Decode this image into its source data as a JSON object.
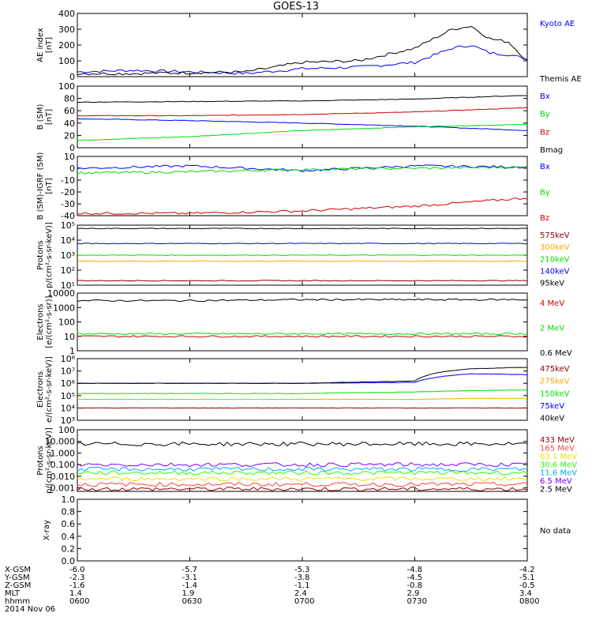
{
  "title": "GOES-13",
  "date": "2014 Nov 06",
  "colors": {
    "black": "#000000",
    "blue": "#0000ff",
    "green": "#00dd00",
    "red": "#cc0000",
    "orange": "#ffa500",
    "darkred": "#8b0000",
    "yellow": "#e6e600",
    "lime": "#22ff00",
    "cyan": "#00aaff",
    "purple": "#7a00ff",
    "pink": "#ff4040"
  },
  "footer": {
    "rows": [
      {
        "label": "X-GSM",
        "values": [
          "-6.0",
          "-5.7",
          "-5.3",
          "-4.8",
          "-4.2"
        ]
      },
      {
        "label": "Y-GSM",
        "values": [
          "-2.3",
          "-3.1",
          "-3.8",
          "-4.5",
          "-5.1"
        ]
      },
      {
        "label": "Z-GSM",
        "values": [
          "-1.6",
          "-1.4",
          "-1.1",
          "-0.8",
          "-0.5"
        ]
      },
      {
        "label": "MLT",
        "values": [
          "1.4",
          "1.9",
          "2.4",
          "2.9",
          "3.4"
        ]
      },
      {
        "label": "hhmm",
        "values": [
          "0600",
          "0630",
          "0700",
          "0730",
          "0800"
        ]
      }
    ]
  },
  "chart_data": [
    {
      "type": "line",
      "ylabel": "AE index\n[nT]",
      "yscale": "linear",
      "ylim": [
        0,
        400
      ],
      "yticks": [
        0,
        100,
        200,
        300,
        400
      ],
      "ytick_labels": [
        "0",
        "100",
        "200",
        "300",
        "400"
      ],
      "x": [
        "0600",
        "0615",
        "0630",
        "0645",
        "0700",
        "0715",
        "0730",
        "0740",
        "0745",
        "0750",
        "0755",
        "0800"
      ],
      "series": [
        {
          "name": "Kyoto AE",
          "color": "blue",
          "values": [
            30,
            40,
            30,
            20,
            50,
            60,
            90,
            180,
            200,
            150,
            140,
            110
          ]
        },
        {
          "name": "Themis AE",
          "color": "black",
          "values": [
            20,
            20,
            25,
            30,
            90,
            100,
            180,
            300,
            320,
            240,
            220,
            100
          ]
        }
      ]
    },
    {
      "type": "line",
      "ylabel": "B (SM)\n[nT]",
      "yscale": "linear",
      "ylim": [
        0,
        100
      ],
      "yticks": [
        0,
        20,
        40,
        60,
        80,
        100
      ],
      "ytick_labels": [
        "0",
        "20",
        "40",
        "60",
        "80",
        "100"
      ],
      "x": [
        "0600",
        "0630",
        "0700",
        "0730",
        "0800"
      ],
      "series": [
        {
          "name": "Bx",
          "color": "blue",
          "values": [
            47,
            44,
            40,
            35,
            28
          ]
        },
        {
          "name": "By",
          "color": "green",
          "values": [
            12,
            18,
            28,
            34,
            38
          ]
        },
        {
          "name": "Bz",
          "color": "red",
          "values": [
            52,
            52,
            54,
            58,
            65
          ]
        },
        {
          "name": "Bmag",
          "color": "black",
          "values": [
            74,
            75,
            76,
            79,
            85
          ]
        }
      ]
    },
    {
      "type": "line",
      "ylabel": "B (SM)-IGRF (SM)\n[nT]",
      "yscale": "linear",
      "ylim": [
        -40,
        10
      ],
      "yticks": [
        -40,
        -30,
        -20,
        -10,
        0,
        10
      ],
      "ytick_labels": [
        "-40",
        "-30",
        "-20",
        "-10",
        "0",
        "10"
      ],
      "x": [
        "0600",
        "0630",
        "0700",
        "0730",
        "0800"
      ],
      "series": [
        {
          "name": "Bx",
          "color": "blue",
          "values": [
            0,
            2,
            -2,
            2,
            1
          ]
        },
        {
          "name": "By",
          "color": "green",
          "values": [
            -4,
            -3,
            -1,
            0,
            1
          ]
        },
        {
          "name": "Bz",
          "color": "red",
          "values": [
            -38,
            -38,
            -36,
            -32,
            -25
          ]
        }
      ]
    },
    {
      "type": "line",
      "ylabel": "Protons\np/(cm²-s-sr-keV)]",
      "yscale": "log",
      "ylim": [
        10,
        100000
      ],
      "yticks": [
        10,
        100,
        1000,
        10000,
        100000
      ],
      "ytick_labels": [
        "10¹",
        "10²",
        "10³",
        "10⁴",
        "10⁵"
      ],
      "x": [
        "0600",
        "0630",
        "0700",
        "0730",
        "0800"
      ],
      "series": [
        {
          "name": "575keV",
          "color": "darkred",
          "values": [
            20,
            20,
            20,
            20,
            20
          ]
        },
        {
          "name": "300keV",
          "color": "orange",
          "values": [
            400,
            400,
            400,
            400,
            400
          ]
        },
        {
          "name": "210keV",
          "color": "green",
          "values": [
            1000,
            1000,
            1000,
            1000,
            1000
          ]
        },
        {
          "name": "140keV",
          "color": "blue",
          "values": [
            6000,
            6000,
            6000,
            6000,
            6000
          ]
        },
        {
          "name": "95keV",
          "color": "black",
          "values": [
            60000,
            60000,
            60000,
            60000,
            60000
          ]
        }
      ]
    },
    {
      "type": "line",
      "ylabel": "Electrons\n[e/(cm²-s-sr)]",
      "yscale": "log",
      "ylim": [
        1,
        10000
      ],
      "yticks": [
        1,
        10,
        100,
        1000,
        10000
      ],
      "ytick_labels": [
        "1",
        "10",
        "100",
        "1000",
        "10000"
      ],
      "x": [
        "0600",
        "0630",
        "0700",
        "0730",
        "0800"
      ],
      "series": [
        {
          "name": "4 MeV",
          "color": "red",
          "values": [
            10,
            10,
            10,
            10,
            10
          ]
        },
        {
          "name": "2 MeV",
          "color": "green",
          "values": [
            15,
            15,
            15,
            15,
            15
          ]
        },
        {
          "name": "0.6 MeV",
          "color": "black",
          "values": [
            3000,
            3000,
            3500,
            3500,
            3500
          ]
        }
      ]
    },
    {
      "type": "line",
      "ylabel": "Electrons\ne/(cm²-s-sr-keV)]",
      "yscale": "log",
      "ylim": [
        1000,
        100000000
      ],
      "yticks": [
        1000,
        10000,
        100000,
        1000000,
        10000000,
        100000000
      ],
      "ytick_labels": [
        "10³",
        "10⁴",
        "10⁵",
        "10⁶",
        "10⁷",
        "10⁸"
      ],
      "x": [
        "0600",
        "0630",
        "0700",
        "0730",
        "0745",
        "0800"
      ],
      "series": [
        {
          "name": "475keV",
          "color": "darkred",
          "values": [
            10000,
            10000,
            10000,
            10000,
            10000,
            10000
          ]
        },
        {
          "name": "275keV",
          "color": "orange",
          "values": [
            50000,
            50000,
            50000,
            50000,
            60000,
            60000
          ]
        },
        {
          "name": "150keV",
          "color": "green",
          "values": [
            150000,
            150000,
            150000,
            200000,
            250000,
            300000
          ]
        },
        {
          "name": "75keV",
          "color": "blue",
          "values": [
            1000000,
            1000000,
            1000000,
            1200000,
            6000000,
            5000000
          ]
        },
        {
          "name": "40keV",
          "color": "black",
          "values": [
            1000000,
            1000000,
            1000000,
            1500000,
            15000000,
            20000000
          ]
        }
      ]
    },
    {
      "type": "line",
      "ylabel": "Protons\np/(cm²-s-sr-keV)]",
      "yscale": "log",
      "ylim": [
        0.0005,
        100
      ],
      "yticks": [
        0.001,
        0.01,
        0.1,
        1,
        10,
        100
      ],
      "ytick_labels": [
        "0.001",
        "0.010",
        "0.100",
        "1.000",
        "10.000",
        "100"
      ],
      "x": [
        "0600",
        "0630",
        "0700",
        "0730",
        "0800"
      ],
      "series": [
        {
          "name": "433 MeV",
          "color": "darkred",
          "values": [
            0.0008,
            0.0008,
            0.0008,
            0.0008,
            0.0008
          ]
        },
        {
          "name": "165 MeV",
          "color": "pink",
          "values": [
            0.002,
            0.002,
            0.002,
            0.002,
            0.002
          ]
        },
        {
          "name": "63.1 MeV",
          "color": "yellow",
          "values": [
            0.006,
            0.006,
            0.006,
            0.006,
            0.006
          ]
        },
        {
          "name": "30.6 MeV",
          "color": "lime",
          "values": [
            0.02,
            0.02,
            0.02,
            0.02,
            0.02
          ]
        },
        {
          "name": "11.6 MeV",
          "color": "cyan",
          "values": [
            0.04,
            0.04,
            0.04,
            0.04,
            0.04
          ]
        },
        {
          "name": "6.5 MeV",
          "color": "purple",
          "values": [
            0.1,
            0.1,
            0.1,
            0.1,
            0.1
          ]
        },
        {
          "name": "2.5 MeV",
          "color": "black",
          "values": [
            6,
            6,
            6,
            6,
            6
          ]
        }
      ]
    },
    {
      "type": "line",
      "ylabel": "X-ray",
      "yscale": "linear",
      "ylim": [
        0,
        1
      ],
      "yticks": [
        0,
        0.2,
        0.4,
        0.6,
        0.8,
        1.0
      ],
      "ytick_labels": [
        "0.0",
        "0.2",
        "0.4",
        "0.6",
        "0.8",
        "1.0"
      ],
      "x": [],
      "series": [],
      "note": "No data"
    }
  ]
}
